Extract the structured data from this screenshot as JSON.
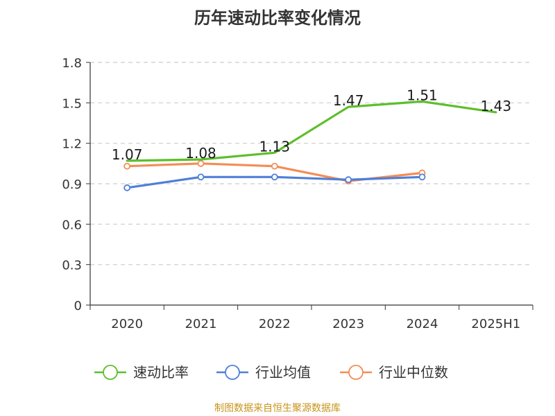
{
  "title": "历年速动比率变化情况",
  "source": "制图数据来自恒生聚源数据库",
  "chart_data": {
    "type": "line",
    "categories": [
      "2020",
      "2021",
      "2022",
      "2023",
      "2024",
      "2025H1"
    ],
    "y_ticks": [
      "0",
      "0.3",
      "0.6",
      "0.9",
      "1.2",
      "1.5",
      "1.8"
    ],
    "ylim": [
      0,
      1.8
    ],
    "grid": "horizontal dashed",
    "legend_position": "bottom",
    "series": [
      {
        "name": "速动比率",
        "color": "#5cbf2a",
        "values": [
          1.07,
          1.08,
          1.13,
          1.47,
          1.51,
          1.43
        ],
        "labels": [
          "1.07",
          "1.08",
          "1.13",
          "1.47",
          "1.51",
          "1.43"
        ],
        "show_labels": true,
        "markers": false
      },
      {
        "name": "行业均值",
        "color": "#4f7fd8",
        "values": [
          0.87,
          0.95,
          0.95,
          0.93,
          0.95,
          null
        ],
        "show_labels": false,
        "markers": true
      },
      {
        "name": "行业中位数",
        "color": "#f48c55",
        "values": [
          1.03,
          1.05,
          1.03,
          0.92,
          0.98,
          null
        ],
        "show_labels": false,
        "markers": true
      }
    ]
  }
}
